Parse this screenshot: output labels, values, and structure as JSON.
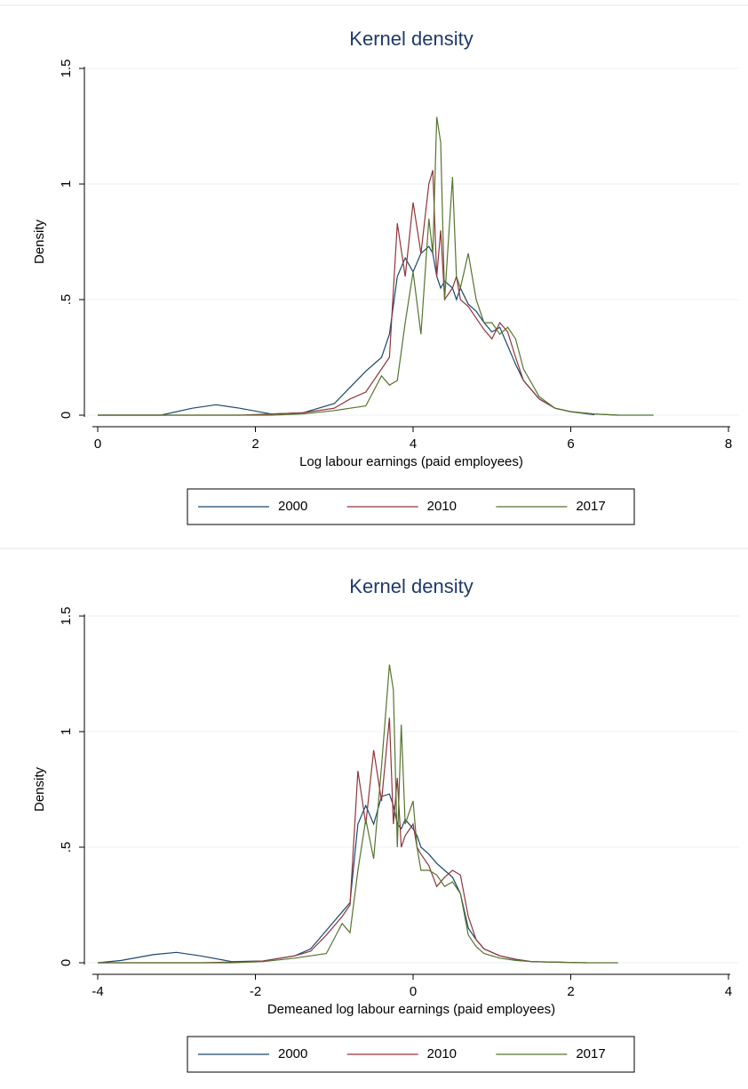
{
  "chart_data": [
    {
      "type": "line",
      "title": "Kernel density",
      "x_label": "Log labour earnings (paid employees)",
      "y_label": "Density",
      "x": [
        0,
        0.8,
        1.2,
        1.5,
        1.8,
        2.2,
        2.6,
        3.0,
        3.2,
        3.4,
        3.6,
        3.7,
        3.8,
        3.9,
        4.0,
        4.1,
        4.2,
        4.25,
        4.3,
        4.35,
        4.4,
        4.5,
        4.55,
        4.6,
        4.7,
        4.8,
        4.9,
        5.0,
        5.1,
        5.2,
        5.3,
        5.4,
        5.6,
        5.8,
        6.0,
        6.3,
        6.6,
        7.05
      ],
      "series": [
        {
          "name": "2000",
          "color": "#1a476f",
          "values": [
            0,
            0,
            0.03,
            0.045,
            0.03,
            0.005,
            0.01,
            0.05,
            0.12,
            0.19,
            0.25,
            0.35,
            0.6,
            0.68,
            0.62,
            0.7,
            0.73,
            0.7,
            0.6,
            0.55,
            0.58,
            0.55,
            0.5,
            0.55,
            0.48,
            0.45,
            0.4,
            0.36,
            0.38,
            0.3,
            0.22,
            0.15,
            0.07,
            0.03,
            0.015,
            0.002,
            null,
            null
          ]
        },
        {
          "name": "2010",
          "color": "#90353b",
          "values": [
            0,
            0,
            0,
            0,
            0,
            0.005,
            0.01,
            0.03,
            0.07,
            0.1,
            0.2,
            0.25,
            0.83,
            0.6,
            0.92,
            0.7,
            1.0,
            1.06,
            0.6,
            0.8,
            0.5,
            0.55,
            0.6,
            0.5,
            0.47,
            0.42,
            0.37,
            0.33,
            0.4,
            0.36,
            0.25,
            0.15,
            0.07,
            0.03,
            0.015,
            0.005,
            0,
            null
          ]
        },
        {
          "name": "2017",
          "color": "#55752f",
          "values": [
            0,
            0,
            0,
            0,
            0,
            0,
            0.005,
            0.02,
            0.03,
            0.04,
            0.17,
            0.13,
            0.15,
            0.4,
            0.62,
            0.35,
            0.85,
            0.7,
            1.29,
            1.18,
            0.5,
            1.03,
            0.6,
            0.55,
            0.7,
            0.5,
            0.4,
            0.4,
            0.35,
            0.38,
            0.33,
            0.2,
            0.08,
            0.03,
            0.015,
            0.005,
            0,
            0
          ]
        }
      ],
      "xlim": [
        0,
        8
      ],
      "xticks": [
        0,
        2,
        4,
        6,
        8
      ],
      "ylim": [
        0,
        1.5
      ],
      "yticks": [
        0,
        {
          "value": 0.5,
          "label": ".5"
        },
        1,
        1.5
      ],
      "grid": true,
      "legend": "bottom"
    },
    {
      "type": "line",
      "title": "Kernel density",
      "x_label": "Demeaned log labour earnings (paid employees)",
      "y_label": "Density",
      "x": [
        -4,
        -3.7,
        -3.3,
        -3.0,
        -2.7,
        -2.3,
        -1.9,
        -1.5,
        -1.3,
        -1.1,
        -0.9,
        -0.8,
        -0.7,
        -0.6,
        -0.5,
        -0.4,
        -0.3,
        -0.25,
        -0.2,
        -0.15,
        -0.1,
        0,
        0.05,
        0.1,
        0.2,
        0.3,
        0.4,
        0.5,
        0.6,
        0.7,
        0.8,
        0.9,
        1.1,
        1.3,
        1.5,
        1.9,
        2.2,
        2.6
      ],
      "series": [
        {
          "name": "2000",
          "color": "#1a476f",
          "values": [
            0,
            0.01,
            0.035,
            0.045,
            0.03,
            0.005,
            0.008,
            0.03,
            0.06,
            0.14,
            0.22,
            0.26,
            0.6,
            0.68,
            0.6,
            0.72,
            0.73,
            0.68,
            0.6,
            0.58,
            0.62,
            0.58,
            0.55,
            0.5,
            0.47,
            0.43,
            0.4,
            0.37,
            0.3,
            0.15,
            0.1,
            0.06,
            0.03,
            0.015,
            0.005,
            0.002,
            null,
            null
          ]
        },
        {
          "name": "2010",
          "color": "#90353b",
          "values": [
            0,
            0,
            0,
            0,
            0,
            0.003,
            0.008,
            0.03,
            0.05,
            0.12,
            0.2,
            0.25,
            0.83,
            0.6,
            0.92,
            0.7,
            1.06,
            0.6,
            0.8,
            0.5,
            0.55,
            0.6,
            0.5,
            0.47,
            0.42,
            0.33,
            0.37,
            0.4,
            0.38,
            0.2,
            0.1,
            0.06,
            0.03,
            0.015,
            0.005,
            0.002,
            0,
            null
          ]
        },
        {
          "name": "2017",
          "color": "#55752f",
          "values": [
            0,
            0,
            0,
            0,
            0,
            0,
            0.005,
            0.02,
            0.03,
            0.04,
            0.17,
            0.13,
            0.4,
            0.62,
            0.45,
            0.85,
            1.29,
            1.18,
            0.5,
            1.03,
            0.6,
            0.7,
            0.5,
            0.4,
            0.4,
            0.38,
            0.33,
            0.35,
            0.3,
            0.12,
            0.07,
            0.04,
            0.02,
            0.01,
            0.005,
            0.002,
            0,
            0
          ]
        }
      ],
      "xlim": [
        -4,
        4
      ],
      "xticks": [
        -4,
        -2,
        0,
        2,
        4
      ],
      "ylim": [
        0,
        1.5
      ],
      "yticks": [
        0,
        {
          "value": 0.5,
          "label": ".5"
        },
        1,
        1.5
      ],
      "grid": true,
      "legend": "bottom"
    }
  ]
}
